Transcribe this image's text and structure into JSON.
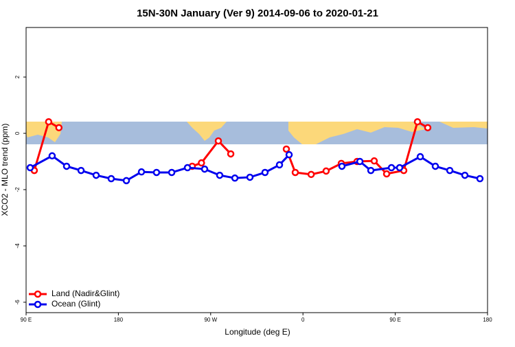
{
  "chart_data": {
    "type": "line",
    "title": "15N-30N January (Ver 9)   2014-09-06 to 2020-01-21",
    "xlabel": "Longitude (deg E)",
    "ylabel": "XCO2 - MLO trend (ppm)",
    "xlim": [
      90,
      540
    ],
    "ylim": [
      -6.37,
      3.76
    ],
    "xticks": [
      {
        "value": 90,
        "label": "90 E"
      },
      {
        "value": 180,
        "label": "180"
      },
      {
        "value": 270,
        "label": "90 W"
      },
      {
        "value": 360,
        "label": "0"
      },
      {
        "value": 450,
        "label": "90 E"
      },
      {
        "value": 540,
        "label": "180"
      }
    ],
    "yticks": [
      2,
      0,
      -2,
      -4,
      -6
    ],
    "legend": "bottomleft",
    "series": [
      {
        "name": "Land (Nadir&Glint)",
        "color": "#ff0000",
        "x": [
          98,
          112,
          122,
          null,
          252,
          261,
          277.5,
          289.6,
          null,
          343.8,
          352.5,
          368,
          382.6,
          397.4,
          412.8,
          429.5,
          441.6,
          458.3,
          471.7,
          481.7
        ],
        "values": [
          -1.32,
          0.41,
          0.2,
          null,
          -1.17,
          -1.05,
          -0.27,
          -0.73,
          null,
          -0.56,
          -1.39,
          -1.46,
          -1.34,
          -1.07,
          -1.0,
          -0.98,
          -1.44,
          -1.32,
          0.41,
          0.2
        ]
      },
      {
        "name": "Ocean (Glint)",
        "color": "#0000ee",
        "x": [
          94,
          115.4,
          129.5,
          143.6,
          158.3,
          173,
          187.8,
          202.5,
          217.2,
          232,
          247.4,
          264.1,
          278.8,
          293.6,
          308.3,
          323,
          337.1,
          346.5,
          null,
          398,
          415.5,
          426.2,
          446.3,
          454.3,
          474.4,
          489.1,
          503.2,
          517.9,
          532.6
        ],
        "values": [
          -1.22,
          -0.8,
          -1.17,
          -1.32,
          -1.49,
          -1.61,
          -1.68,
          -1.37,
          -1.39,
          -1.39,
          -1.22,
          -1.27,
          -1.49,
          -1.59,
          -1.56,
          -1.39,
          -1.12,
          -0.76,
          null,
          -1.17,
          -1.0,
          -1.32,
          -1.22,
          -1.22,
          -0.83,
          -1.17,
          -1.32,
          -1.49,
          -1.61
        ]
      }
    ]
  }
}
